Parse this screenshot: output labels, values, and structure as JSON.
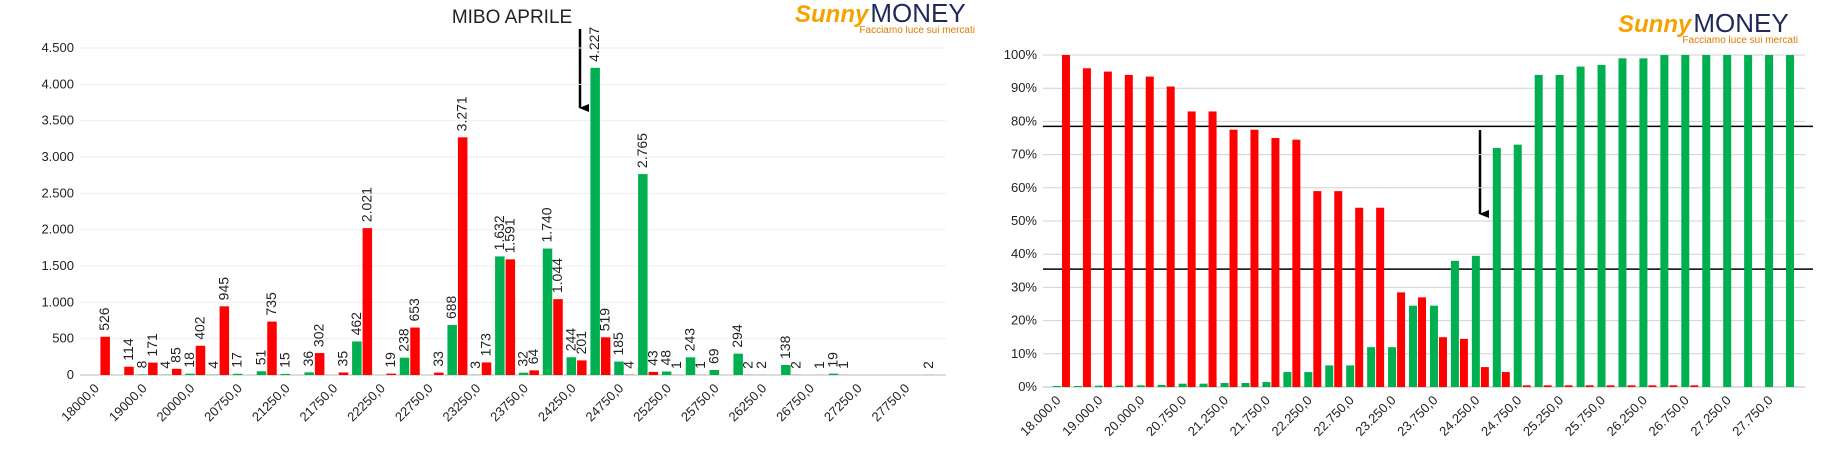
{
  "chart_data": [
    {
      "type": "bar",
      "title": "MIBO APRILE",
      "logo": {
        "brand": "Sunny",
        "brand2": "MONEY",
        "tagline": "Facciamo luce sui mercati"
      },
      "categories": [
        "18000,0",
        null,
        "19000,0",
        null,
        "20000,0",
        null,
        "20750,0",
        null,
        "21250,0",
        null,
        "21750,0",
        null,
        "22250,0",
        null,
        "22750,0",
        null,
        "23250,0",
        null,
        "23750,0",
        null,
        "24250,0",
        null,
        "24750,0",
        null,
        "25250,0",
        null,
        "25750,0",
        null,
        "26250,0",
        null,
        "26750,0",
        null,
        "27250,0",
        null,
        "27750,0",
        null
      ],
      "series": [
        {
          "color": "#00b050",
          "values": [
            null,
            null,
            8,
            4,
            18,
            4,
            17,
            51,
            15,
            36,
            null,
            462,
            null,
            238,
            null,
            688,
            3,
            1632,
            32,
            1740,
            244,
            4227,
            185,
            2765,
            48,
            243,
            69,
            294,
            2,
            138,
            null,
            19,
            null,
            null,
            null,
            2
          ],
          "value_labels": [
            null,
            null,
            "8",
            "4",
            "18",
            "4",
            "17",
            "51",
            "15",
            "36",
            null,
            "462",
            null,
            "238",
            null,
            "688",
            "3",
            "1.632",
            "32",
            "1.740",
            "244",
            "4.227",
            "185",
            "2.765",
            "48",
            "243",
            "69",
            "294",
            "2",
            "138",
            null,
            "19",
            null,
            null,
            null,
            "2"
          ]
        },
        {
          "color": "#ff0000",
          "values": [
            526,
            114,
            171,
            85,
            402,
            945,
            null,
            735,
            null,
            302,
            35,
            2021,
            19,
            653,
            33,
            3271,
            173,
            1591,
            64,
            1044,
            201,
            519,
            4,
            43,
            1,
            1,
            null,
            2,
            null,
            2,
            1,
            1,
            null,
            null,
            null,
            null
          ],
          "value_labels": [
            "526",
            "114",
            "171",
            "85",
            "402",
            "945",
            null,
            "735",
            null,
            "302",
            "35",
            "2.021",
            "19",
            "653",
            "33",
            "3.271",
            "173",
            "1.591",
            "64",
            "1.044",
            "201",
            "519",
            "4",
            "43",
            "1",
            "1",
            null,
            "2",
            null,
            "2",
            "1",
            "1",
            null,
            null,
            null,
            null
          ]
        }
      ],
      "ylim": [
        0,
        4500
      ],
      "yticks": [
        0,
        {
          "value": 500,
          "label": "500"
        },
        {
          "value": 1000,
          "label": "1.000"
        },
        {
          "value": 1500,
          "label": "1.500"
        },
        {
          "value": 2000,
          "label": "2.000"
        },
        {
          "value": 2500,
          "label": "2.500"
        },
        {
          "value": 3000,
          "label": "3.000"
        },
        {
          "value": 3500,
          "label": "3.500"
        },
        {
          "value": 4000,
          "label": "4.000"
        },
        {
          "value": 4500,
          "label": "4.500"
        }
      ],
      "grid": true
    },
    {
      "type": "bar",
      "logo": {
        "brand": "Sunny",
        "brand2": "MONEY",
        "tagline": "Facciamo luce sui mercati"
      },
      "categories": [
        "18.000,0",
        null,
        "19.000,0",
        null,
        "20.000,0",
        null,
        "20.750,0",
        null,
        "21.250,0",
        null,
        "21.750,0",
        null,
        "22.250,0",
        null,
        "22.750,0",
        null,
        "23.250,0",
        null,
        "23.750,0",
        null,
        "24.250,0",
        null,
        "24.750,0",
        null,
        "25.250,0",
        null,
        "25.750,0",
        null,
        "26.250,0",
        null,
        "26.750,0",
        null,
        "27.250,0",
        null,
        "27.750,0",
        null
      ],
      "series": [
        {
          "color": "#00b050",
          "values": [
            0.3,
            0.3,
            0.4,
            0.4,
            0.5,
            0.6,
            1,
            1,
            1.2,
            1.2,
            1.5,
            4.5,
            4.5,
            6.5,
            6.5,
            12,
            12,
            24.5,
            24.5,
            38,
            39.5,
            72,
            73,
            94,
            94,
            96.5,
            97,
            99,
            99,
            100,
            100,
            100,
            100,
            100,
            100,
            100
          ]
        },
        {
          "color": "#ff0000",
          "values": [
            100,
            96,
            95,
            94,
            93.5,
            90.5,
            83,
            83,
            77.5,
            77.5,
            75,
            74.5,
            59,
            59,
            54,
            54,
            28.5,
            27,
            15,
            14.5,
            6,
            4.5,
            0.5,
            0.5,
            0.5,
            0.5,
            0.5,
            0.5,
            0.5,
            0.5,
            0.5,
            null,
            null,
            null,
            null,
            null
          ]
        }
      ],
      "ylim": [
        0,
        100
      ],
      "yticks": [
        {
          "value": 0,
          "label": "0%"
        },
        {
          "value": 10,
          "label": "10%"
        },
        {
          "value": 20,
          "label": "20%"
        },
        {
          "value": 30,
          "label": "30%"
        },
        {
          "value": 40,
          "label": "40%"
        },
        {
          "value": 50,
          "label": "50%"
        },
        {
          "value": 60,
          "label": "60%"
        },
        {
          "value": 70,
          "label": "70%"
        },
        {
          "value": 80,
          "label": "80%"
        },
        {
          "value": 90,
          "label": "90%"
        },
        {
          "value": 100,
          "label": "100%"
        }
      ],
      "hlines": [
        78.5,
        35.5
      ],
      "grid": true
    }
  ]
}
